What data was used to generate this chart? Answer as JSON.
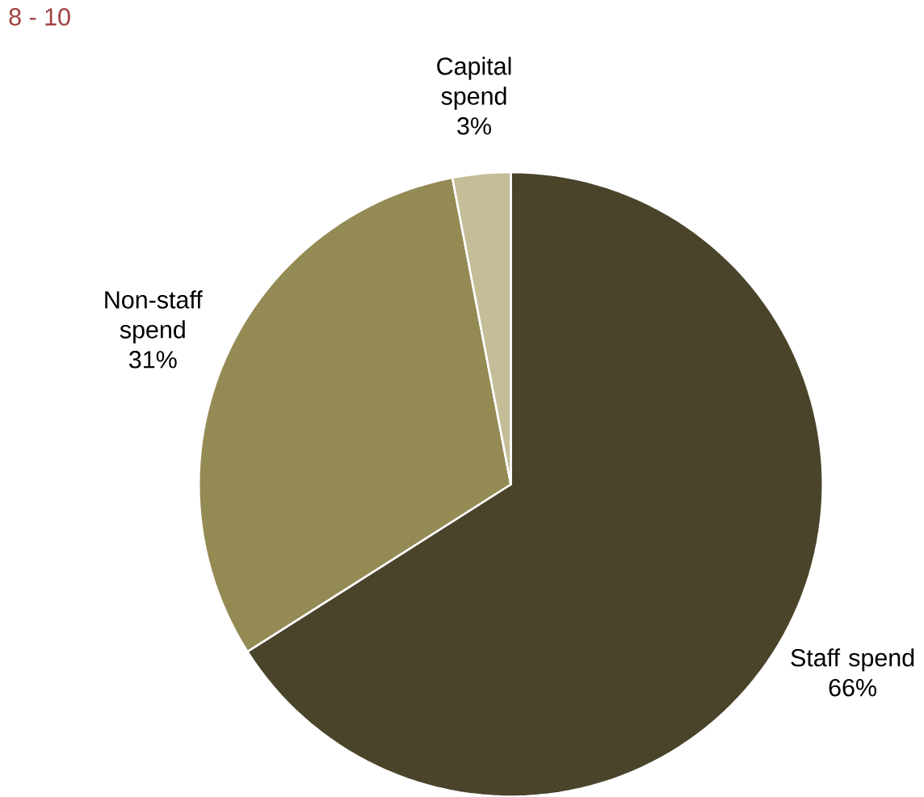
{
  "chart_data": {
    "type": "pie",
    "categories": [
      "Staff spend",
      "Non-staff spend",
      "Capital spend"
    ],
    "values": [
      66,
      31,
      3
    ],
    "colors": [
      "#4a442b",
      "#948a54",
      "#c4bd97"
    ],
    "value_labels": [
      "66%",
      "31%",
      "3%"
    ],
    "annotations": [
      "8 - 10"
    ]
  }
}
